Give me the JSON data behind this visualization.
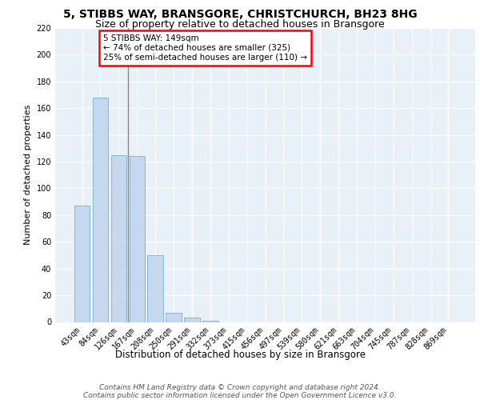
{
  "title1": "5, STIBBS WAY, BRANSGORE, CHRISTCHURCH, BH23 8HG",
  "title2": "Size of property relative to detached houses in Bransgore",
  "xlabel": "Distribution of detached houses by size in Bransgore",
  "ylabel": "Number of detached properties",
  "categories": [
    "43sqm",
    "84sqm",
    "126sqm",
    "167sqm",
    "208sqm",
    "250sqm",
    "291sqm",
    "332sqm",
    "373sqm",
    "415sqm",
    "456sqm",
    "497sqm",
    "539sqm",
    "580sqm",
    "621sqm",
    "663sqm",
    "704sqm",
    "745sqm",
    "787sqm",
    "828sqm",
    "869sqm"
  ],
  "values": [
    87,
    168,
    125,
    124,
    50,
    7,
    3,
    1,
    0,
    0,
    0,
    0,
    0,
    0,
    0,
    0,
    0,
    0,
    0,
    0,
    0
  ],
  "bar_color": "#c5d8ed",
  "bar_edge_color": "#7aaecb",
  "annotation_text": "5 STIBBS WAY: 149sqm\n← 74% of detached houses are smaller (325)\n25% of semi-detached houses are larger (110) →",
  "annotation_box_color": "white",
  "annotation_box_edge_color": "red",
  "ylim": [
    0,
    220
  ],
  "yticks": [
    0,
    20,
    40,
    60,
    80,
    100,
    120,
    140,
    160,
    180,
    200,
    220
  ],
  "background_color": "#e8f0f8",
  "grid_color": "white",
  "vline_x": 2.52,
  "footer1": "Contains HM Land Registry data © Crown copyright and database right 2024.",
  "footer2": "Contains public sector information licensed under the Open Government Licence v3.0.",
  "title1_fontsize": 10,
  "title2_fontsize": 9,
  "xlabel_fontsize": 8.5,
  "ylabel_fontsize": 8,
  "tick_fontsize": 7,
  "footer_fontsize": 6.5,
  "annotation_fontsize": 7.5
}
